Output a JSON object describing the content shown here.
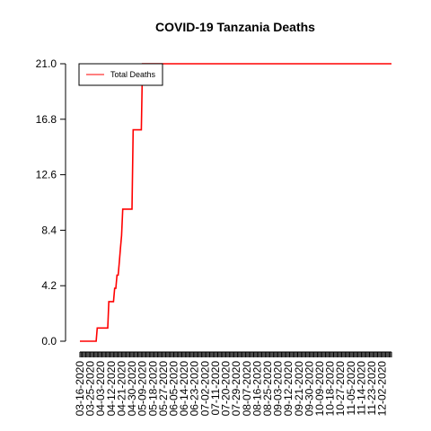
{
  "chart_data": {
    "type": "line",
    "title": "COVID-19 Tanzania Deaths",
    "xlabel": "",
    "ylabel": "",
    "ylim": [
      0,
      21
    ],
    "y_ticks": [
      "0.0",
      "4.2",
      "8.4",
      "12.6",
      "16.8",
      "21.0"
    ],
    "x_tick_labels": [
      "03-16-2020",
      "03-25-2020",
      "04-03-2020",
      "04-12-2020",
      "04-21-2020",
      "04-30-2020",
      "05-09-2020",
      "05-18-2020",
      "05-27-2020",
      "06-05-2020",
      "06-14-2020",
      "06-23-2020",
      "07-02-2020",
      "07-11-2020",
      "07-20-2020",
      "07-29-2020",
      "08-07-2020",
      "08-16-2020",
      "08-25-2020",
      "09-03-2020",
      "09-12-2020",
      "09-21-2020",
      "09-30-2020",
      "10-09-2020",
      "10-18-2020",
      "10-27-2020",
      "11-05-2020",
      "11-14-2020",
      "11-23-2020",
      "12-02-2020"
    ],
    "x_range": [
      "03-16-2020",
      "12-10-2020"
    ],
    "grid": false,
    "legend": {
      "position": "top-left"
    },
    "series": [
      {
        "name": "Total Deaths",
        "color": "#ff0000",
        "points": [
          [
            "03-16-2020",
            0
          ],
          [
            "03-30-2020",
            0
          ],
          [
            "03-31-2020",
            1
          ],
          [
            "04-09-2020",
            1
          ],
          [
            "04-10-2020",
            3
          ],
          [
            "04-14-2020",
            3
          ],
          [
            "04-15-2020",
            4
          ],
          [
            "04-16-2020",
            4
          ],
          [
            "04-17-2020",
            5
          ],
          [
            "04-18-2020",
            5
          ],
          [
            "04-19-2020",
            6
          ],
          [
            "04-20-2020",
            7
          ],
          [
            "04-21-2020",
            8
          ],
          [
            "04-22-2020",
            10
          ],
          [
            "04-30-2020",
            10
          ],
          [
            "05-01-2020",
            16
          ],
          [
            "05-08-2020",
            16
          ],
          [
            "05-09-2020",
            21
          ],
          [
            "12-10-2020",
            21
          ]
        ]
      }
    ]
  }
}
